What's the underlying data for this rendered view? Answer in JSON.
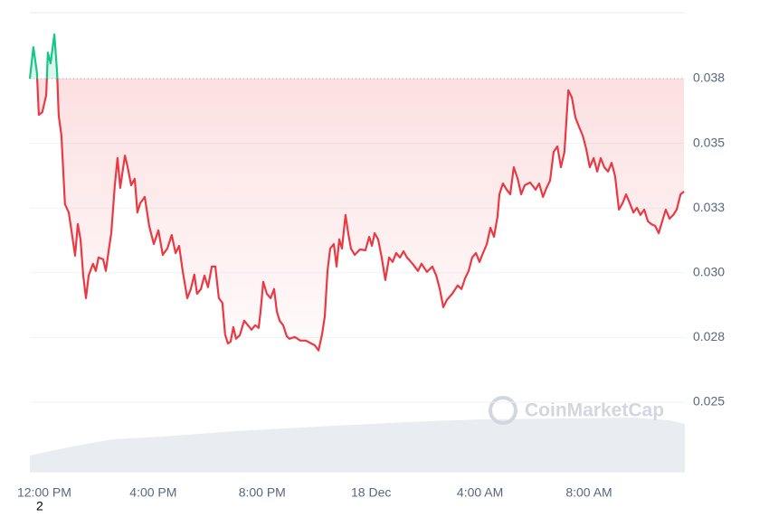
{
  "chart_data": {
    "type": "line",
    "x": [
      -0.53,
      -0.4,
      -0.27,
      -0.2,
      -0.07,
      0.07,
      0.13,
      0.23,
      0.37,
      0.47,
      0.53,
      0.63,
      0.76,
      0.9,
      1.03,
      1.13,
      1.23,
      1.33,
      1.43,
      1.53,
      1.63,
      1.79,
      1.89,
      1.99,
      2.16,
      2.26,
      2.36,
      2.46,
      2.59,
      2.69,
      2.79,
      2.96,
      3.06,
      3.19,
      3.32,
      3.42,
      3.52,
      3.69,
      3.85,
      4.02,
      4.19,
      4.35,
      4.52,
      4.68,
      4.82,
      4.95,
      5.08,
      5.25,
      5.38,
      5.51,
      5.61,
      5.75,
      5.88,
      6.01,
      6.15,
      6.28,
      6.41,
      6.54,
      6.64,
      6.74,
      6.84,
      6.94,
      7.04,
      7.18,
      7.34,
      7.48,
      7.61,
      7.74,
      7.87,
      7.94,
      8.04,
      8.17,
      8.31,
      8.44,
      8.54,
      8.64,
      8.77,
      8.9,
      9.0,
      9.2,
      9.4,
      9.6,
      9.8,
      9.93,
      10.07,
      10.2,
      10.3,
      10.4,
      10.5,
      10.63,
      10.73,
      10.83,
      10.93,
      11.06,
      11.16,
      11.26,
      11.4,
      11.59,
      11.79,
      11.93,
      12.03,
      12.13,
      12.26,
      12.39,
      12.52,
      12.66,
      12.79,
      12.92,
      13.06,
      13.19,
      13.32,
      13.52,
      13.72,
      13.85,
      14.05,
      14.25,
      14.39,
      14.52,
      14.65,
      14.78,
      14.98,
      15.18,
      15.32,
      15.45,
      15.58,
      15.71,
      15.85,
      15.98,
      16.11,
      16.25,
      16.38,
      16.51,
      16.64,
      16.71,
      16.84,
      16.98,
      17.11,
      17.24,
      17.38,
      17.51,
      17.64,
      17.84,
      18.04,
      18.17,
      18.31,
      18.44,
      18.57,
      18.7,
      18.84,
      18.97,
      19.1,
      19.24,
      19.37,
      19.5,
      19.63,
      19.77,
      19.9,
      20.03,
      20.17,
      20.3,
      20.43,
      20.56,
      20.7,
      20.83,
      20.96,
      21.1,
      21.23,
      21.36,
      21.5,
      21.63,
      21.76,
      21.89,
      22.03,
      22.16,
      22.29,
      22.43,
      22.56,
      22.69,
      22.82,
      22.96,
      23.09,
      23.22,
      23.36,
      23.49
    ],
    "values": [
      0.0375,
      0.03872,
      0.03774,
      0.0361,
      0.03621,
      0.03687,
      0.03851,
      0.03809,
      0.03921,
      0.03774,
      0.03607,
      0.0353,
      0.03265,
      0.03233,
      0.03139,
      0.03066,
      0.03188,
      0.03129,
      0.02989,
      0.02902,
      0.02989,
      0.03035,
      0.03007,
      0.03059,
      0.03052,
      0.03007,
      0.03083,
      0.03153,
      0.03338,
      0.03443,
      0.03328,
      0.03453,
      0.03408,
      0.03338,
      0.03363,
      0.03233,
      0.03268,
      0.03293,
      0.03181,
      0.03111,
      0.03164,
      0.03069,
      0.03094,
      0.03146,
      0.03076,
      0.03104,
      0.03007,
      0.02902,
      0.02937,
      0.02993,
      0.02919,
      0.02937,
      0.02989,
      0.02944,
      0.03024,
      0.03024,
      0.02902,
      0.02884,
      0.02762,
      0.02727,
      0.02734,
      0.0279,
      0.02745,
      0.02759,
      0.02815,
      0.02797,
      0.0278,
      0.02797,
      0.02787,
      0.0285,
      0.02965,
      0.02919,
      0.02902,
      0.02937,
      0.0285,
      0.02815,
      0.02797,
      0.02755,
      0.02745,
      0.02752,
      0.02738,
      0.02738,
      0.02727,
      0.0272,
      0.027,
      0.02762,
      0.02832,
      0.03007,
      0.03094,
      0.03111,
      0.03024,
      0.03129,
      0.03094,
      0.03223,
      0.03153,
      0.03094,
      0.03069,
      0.0309,
      0.03087,
      0.03139,
      0.03104,
      0.03153,
      0.03129,
      0.03059,
      0.02972,
      0.03059,
      0.03042,
      0.03076,
      0.03059,
      0.03083,
      0.03059,
      0.03035,
      0.03007,
      0.03035,
      0.03003,
      0.03024,
      0.02989,
      0.02937,
      0.02867,
      0.02895,
      0.02919,
      0.02951,
      0.02937,
      0.02979,
      0.03007,
      0.03059,
      0.03076,
      0.03042,
      0.03076,
      0.03111,
      0.03174,
      0.03139,
      0.03216,
      0.03303,
      0.03345,
      0.03321,
      0.03303,
      0.03408,
      0.03363,
      0.03303,
      0.03338,
      0.03349,
      0.03321,
      0.03345,
      0.03293,
      0.03328,
      0.03356,
      0.03467,
      0.03488,
      0.03408,
      0.03467,
      0.03705,
      0.03677,
      0.036,
      0.03565,
      0.0353,
      0.03478,
      0.03408,
      0.03443,
      0.03391,
      0.03443,
      0.03408,
      0.03391,
      0.03425,
      0.03373,
      0.03244,
      0.03268,
      0.03303,
      0.03268,
      0.03233,
      0.03251,
      0.03223,
      0.03244,
      0.03199,
      0.03188,
      0.03181,
      0.03153,
      0.03199,
      0.03244,
      0.03209,
      0.03223,
      0.03244,
      0.03303,
      0.03314
    ],
    "color": "#ea3943",
    "up_color": "#16c784",
    "baseline": 0.0375,
    "xlim": [
      -0.53,
      23.52
    ],
    "xticks": [
      {
        "value": 0,
        "label": "12:00 PM"
      },
      {
        "value": 4,
        "label": "4:00 PM"
      },
      {
        "value": 8,
        "label": "8:00 PM"
      },
      {
        "value": 12,
        "label": "18 Dec"
      },
      {
        "value": 16,
        "label": "4:00 AM"
      },
      {
        "value": 20,
        "label": "8:00 AM"
      }
    ],
    "ylim": [
      0.02231,
      0.04005
    ],
    "yticks": [
      {
        "value": 0.025,
        "label": "0.025"
      },
      {
        "value": 0.0275,
        "label": "0.028"
      },
      {
        "value": 0.03,
        "label": "0.030"
      },
      {
        "value": 0.0325,
        "label": "0.033"
      },
      {
        "value": 0.035,
        "label": "0.035"
      },
      {
        "value": 0.0375,
        "label": "0.038"
      }
    ],
    "grid": true,
    "watermark": "CoinMarketCap",
    "footnote": "2"
  }
}
